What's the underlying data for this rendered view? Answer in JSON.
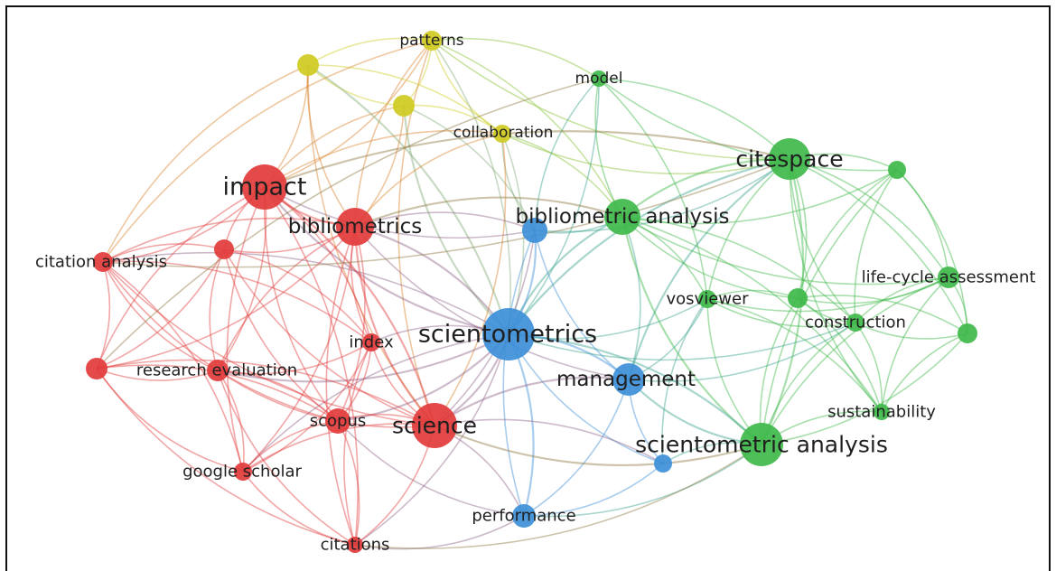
{
  "colors": {
    "red": "#e23b3b",
    "green": "#3fb84a",
    "blue": "#3d8fd8",
    "yellow": "#cfcb22"
  },
  "nodes": [
    {
      "id": "patterns",
      "label": "patterns",
      "cluster": "yellow",
      "weight": 2
    },
    {
      "id": "y1",
      "label": "",
      "cluster": "yellow",
      "weight": 2
    },
    {
      "id": "y2",
      "label": "",
      "cluster": "yellow",
      "weight": 2
    },
    {
      "id": "collaboration",
      "label": "collaboration",
      "cluster": "yellow",
      "weight": 2
    },
    {
      "id": "model",
      "label": "model",
      "cluster": "green",
      "weight": 2
    },
    {
      "id": "citespace",
      "label": "citespace",
      "cluster": "green",
      "weight": 5
    },
    {
      "id": "g1",
      "label": "",
      "cluster": "green",
      "weight": 2
    },
    {
      "id": "bibliometric-analysis",
      "label": "bibliometric analysis",
      "cluster": "green",
      "weight": 4
    },
    {
      "id": "life-cycle-assessment",
      "label": "life-cycle assessment",
      "cluster": "green",
      "weight": 2
    },
    {
      "id": "vosviewer",
      "label": "vosviewer",
      "cluster": "green",
      "weight": 2
    },
    {
      "id": "g2",
      "label": "",
      "cluster": "green",
      "weight": 2
    },
    {
      "id": "construction",
      "label": "construction",
      "cluster": "green",
      "weight": 2
    },
    {
      "id": "g3",
      "label": "",
      "cluster": "green",
      "weight": 2
    },
    {
      "id": "sustainability",
      "label": "sustainability",
      "cluster": "green",
      "weight": 2
    },
    {
      "id": "scientometric-analysis",
      "label": "scientometric analysis",
      "cluster": "green",
      "weight": 5
    },
    {
      "id": "impact",
      "label": "impact",
      "cluster": "red",
      "weight": 5
    },
    {
      "id": "bibliometrics",
      "label": "bibliometrics",
      "cluster": "red",
      "weight": 4
    },
    {
      "id": "citation-analysis",
      "label": "citation analysis",
      "cluster": "red",
      "weight": 2
    },
    {
      "id": "r1",
      "label": "",
      "cluster": "red",
      "weight": 2
    },
    {
      "id": "research-evaluation",
      "label": "research evaluation",
      "cluster": "red",
      "weight": 2
    },
    {
      "id": "r2",
      "label": "",
      "cluster": "red",
      "weight": 2
    },
    {
      "id": "index",
      "label": "index",
      "cluster": "red",
      "weight": 2
    },
    {
      "id": "scopus",
      "label": "scopus",
      "cluster": "red",
      "weight": 2
    },
    {
      "id": "science",
      "label": "science",
      "cluster": "red",
      "weight": 5
    },
    {
      "id": "google-scholar",
      "label": "google scholar",
      "cluster": "red",
      "weight": 2
    },
    {
      "id": "citations",
      "label": "citations",
      "cluster": "red",
      "weight": 2
    },
    {
      "id": "scientometrics",
      "label": "scientometrics",
      "cluster": "blue",
      "weight": 6
    },
    {
      "id": "management",
      "label": "management",
      "cluster": "blue",
      "weight": 4
    },
    {
      "id": "b1",
      "label": "",
      "cluster": "blue",
      "weight": 2
    },
    {
      "id": "performance",
      "label": "performance",
      "cluster": "blue",
      "weight": 2
    },
    {
      "id": "b2",
      "label": "",
      "cluster": "blue",
      "weight": 2
    }
  ]
}
